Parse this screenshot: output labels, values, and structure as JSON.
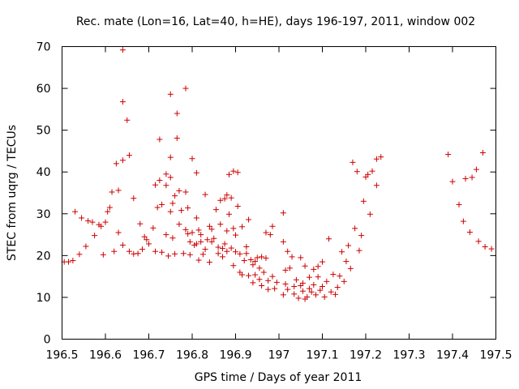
{
  "chart_data": {
    "type": "scatter",
    "title": "Rec. mate (Lon=16, Lat=40, h=HE), days 196-197, 2011, window 002",
    "xlabel": "GPS time / Days of year 2011",
    "ylabel": "STEC from uqrg / TECUs",
    "xlim": [
      196.5,
      197.5
    ],
    "ylim": [
      0,
      70
    ],
    "xticks": [
      196.5,
      196.6,
      196.7,
      196.8,
      196.9,
      197.0,
      197.1,
      197.2,
      197.3,
      197.4,
      197.5
    ],
    "xtick_labels": [
      "196.5",
      "196.6",
      "196.7",
      "196.8",
      "196.9",
      "197",
      "197.1",
      "197.2",
      "197.3",
      "197.4",
      "197.5"
    ],
    "yticks": [
      0,
      10,
      20,
      30,
      40,
      50,
      60,
      70
    ],
    "ytick_labels": [
      "0",
      "10",
      "20",
      "30",
      "40",
      "50",
      "60",
      "70"
    ],
    "marker": "plus",
    "colors": {
      "marker": "#cc0000",
      "frame": "#000000"
    },
    "grid": false,
    "series": [
      {
        "points": [
          [
            196.505,
            18.5
          ],
          [
            196.515,
            18.5
          ],
          [
            196.525,
            18.8
          ],
          [
            196.53,
            30.5
          ],
          [
            196.54,
            20.3
          ],
          [
            196.545,
            29.0
          ],
          [
            196.555,
            22.2
          ],
          [
            196.56,
            28.3
          ],
          [
            196.57,
            28.0
          ],
          [
            196.575,
            24.8
          ],
          [
            196.585,
            27.4
          ],
          [
            196.59,
            27.0
          ],
          [
            196.595,
            20.2
          ],
          [
            196.6,
            28.0
          ],
          [
            196.605,
            30.5
          ],
          [
            196.61,
            31.5
          ],
          [
            196.615,
            35.2
          ],
          [
            196.62,
            21.0
          ],
          [
            196.625,
            42.0
          ],
          [
            196.63,
            35.6
          ],
          [
            196.63,
            25.5
          ],
          [
            196.64,
            42.8
          ],
          [
            196.64,
            22.5
          ],
          [
            196.64,
            69.2
          ],
          [
            196.64,
            56.8
          ],
          [
            196.65,
            52.4
          ],
          [
            196.655,
            44.0
          ],
          [
            196.655,
            21.0
          ],
          [
            196.665,
            33.7
          ],
          [
            196.665,
            20.4
          ],
          [
            196.675,
            20.5
          ],
          [
            196.68,
            27.6
          ],
          [
            196.685,
            21.5
          ],
          [
            196.69,
            24.5
          ],
          [
            196.695,
            23.8
          ],
          [
            196.7,
            22.8
          ],
          [
            196.71,
            26.6
          ],
          [
            196.715,
            36.9
          ],
          [
            196.715,
            21.0
          ],
          [
            196.72,
            31.5
          ],
          [
            196.725,
            38.0
          ],
          [
            196.725,
            47.8
          ],
          [
            196.73,
            32.2
          ],
          [
            196.73,
            20.8
          ],
          [
            196.74,
            25.0
          ],
          [
            196.74,
            39.5
          ],
          [
            196.74,
            36.8
          ],
          [
            196.745,
            19.9
          ],
          [
            196.75,
            43.5
          ],
          [
            196.75,
            58.6
          ],
          [
            196.75,
            38.7
          ],
          [
            196.75,
            30.5
          ],
          [
            196.755,
            24.2
          ],
          [
            196.755,
            32.5
          ],
          [
            196.76,
            34.3
          ],
          [
            196.76,
            20.4
          ],
          [
            196.765,
            54.0
          ],
          [
            196.765,
            48.1
          ],
          [
            196.77,
            35.5
          ],
          [
            196.77,
            27.5
          ],
          [
            196.775,
            30.8
          ],
          [
            196.78,
            20.5
          ],
          [
            196.785,
            26.2
          ],
          [
            196.785,
            60.0
          ],
          [
            196.785,
            35.2
          ],
          [
            196.79,
            25.2
          ],
          [
            196.79,
            31.4
          ],
          [
            196.795,
            23.3
          ],
          [
            196.795,
            20.2
          ],
          [
            196.8,
            43.2
          ],
          [
            196.8,
            25.5
          ],
          [
            196.805,
            22.5
          ],
          [
            196.81,
            29.0
          ],
          [
            196.81,
            39.8
          ],
          [
            196.81,
            22.8
          ],
          [
            196.815,
            26.1
          ],
          [
            196.815,
            18.9
          ],
          [
            196.82,
            23.3
          ],
          [
            196.82,
            25.0
          ],
          [
            196.825,
            20.3
          ],
          [
            196.83,
            34.6
          ],
          [
            196.83,
            21.5
          ],
          [
            196.835,
            23.8
          ],
          [
            196.84,
            27.0
          ],
          [
            196.84,
            18.4
          ],
          [
            196.845,
            26.3
          ],
          [
            196.845,
            23.3
          ],
          [
            196.85,
            24.1
          ],
          [
            196.855,
            31.0
          ],
          [
            196.86,
            22.0
          ],
          [
            196.86,
            20.5
          ],
          [
            196.865,
            27.5
          ],
          [
            196.865,
            33.2
          ],
          [
            196.87,
            21.7
          ],
          [
            196.87,
            19.7
          ],
          [
            196.875,
            33.6
          ],
          [
            196.875,
            22.8
          ],
          [
            196.88,
            25.9
          ],
          [
            196.88,
            21.0
          ],
          [
            196.88,
            34.5
          ],
          [
            196.885,
            39.4
          ],
          [
            196.885,
            29.9
          ],
          [
            196.89,
            33.8
          ],
          [
            196.89,
            21.8
          ],
          [
            196.895,
            40.2
          ],
          [
            196.895,
            17.6
          ],
          [
            196.895,
            26.5
          ],
          [
            196.9,
            24.9
          ],
          [
            196.9,
            20.9
          ],
          [
            196.905,
            31.8
          ],
          [
            196.905,
            39.9
          ],
          [
            196.91,
            16.0
          ],
          [
            196.91,
            20.4
          ],
          [
            196.915,
            15.4
          ],
          [
            196.915,
            26.9
          ],
          [
            196.92,
            18.8
          ],
          [
            196.925,
            20.5
          ],
          [
            196.925,
            22.1
          ],
          [
            196.93,
            28.6
          ],
          [
            196.93,
            15.2
          ],
          [
            196.935,
            19.0
          ],
          [
            196.94,
            13.5
          ],
          [
            196.94,
            17.8
          ],
          [
            196.945,
            18.6
          ],
          [
            196.945,
            15.4
          ],
          [
            196.95,
            19.5
          ],
          [
            196.955,
            14.3
          ],
          [
            196.955,
            17.0
          ],
          [
            196.96,
            19.7
          ],
          [
            196.96,
            12.8
          ],
          [
            196.965,
            16.0
          ],
          [
            196.97,
            19.4
          ],
          [
            196.97,
            25.5
          ],
          [
            196.975,
            14.0
          ],
          [
            196.975,
            11.9
          ],
          [
            196.98,
            25.0
          ],
          [
            196.985,
            27.0
          ],
          [
            196.985,
            15.0
          ],
          [
            196.99,
            12.1
          ],
          [
            196.995,
            13.6
          ],
          [
            197.01,
            30.2
          ],
          [
            197.01,
            10.6
          ],
          [
            197.01,
            23.3
          ],
          [
            197.015,
            16.5
          ],
          [
            197.015,
            13.2
          ],
          [
            197.02,
            21.0
          ],
          [
            197.02,
            11.9
          ],
          [
            197.025,
            17.0
          ],
          [
            197.03,
            19.7
          ],
          [
            197.035,
            12.6
          ],
          [
            197.035,
            10.8
          ],
          [
            197.04,
            14.2
          ],
          [
            197.045,
            9.8
          ],
          [
            197.05,
            19.5
          ],
          [
            197.05,
            12.8
          ],
          [
            197.055,
            13.4
          ],
          [
            197.055,
            11.5
          ],
          [
            197.06,
            9.6
          ],
          [
            197.06,
            17.5
          ],
          [
            197.065,
            10.1
          ],
          [
            197.07,
            12.1
          ],
          [
            197.07,
            14.8
          ],
          [
            197.075,
            11.3
          ],
          [
            197.08,
            16.7
          ],
          [
            197.08,
            13.0
          ],
          [
            197.085,
            10.6
          ],
          [
            197.09,
            17.4
          ],
          [
            197.09,
            14.9
          ],
          [
            197.095,
            11.7
          ],
          [
            197.1,
            18.5
          ],
          [
            197.1,
            12.6
          ],
          [
            197.105,
            10.1
          ],
          [
            197.11,
            13.8
          ],
          [
            197.115,
            24.0
          ],
          [
            197.12,
            11.3
          ],
          [
            197.125,
            15.5
          ],
          [
            197.13,
            10.7
          ],
          [
            197.135,
            12.4
          ],
          [
            197.14,
            15.1
          ],
          [
            197.145,
            20.9
          ],
          [
            197.15,
            13.8
          ],
          [
            197.155,
            18.6
          ],
          [
            197.16,
            22.4
          ],
          [
            197.165,
            16.9
          ],
          [
            197.17,
            42.3
          ],
          [
            197.175,
            26.5
          ],
          [
            197.18,
            40.1
          ],
          [
            197.185,
            21.2
          ],
          [
            197.19,
            24.8
          ],
          [
            197.195,
            33.0
          ],
          [
            197.2,
            38.8
          ],
          [
            197.205,
            39.4
          ],
          [
            197.21,
            29.9
          ],
          [
            197.215,
            40.2
          ],
          [
            197.225,
            43.1
          ],
          [
            197.225,
            36.8
          ],
          [
            197.235,
            43.6
          ],
          [
            197.39,
            44.2
          ],
          [
            197.4,
            37.7
          ],
          [
            197.415,
            32.2
          ],
          [
            197.425,
            28.2
          ],
          [
            197.43,
            38.4
          ],
          [
            197.44,
            25.6
          ],
          [
            197.445,
            38.7
          ],
          [
            197.455,
            40.6
          ],
          [
            197.46,
            23.4
          ],
          [
            197.47,
            44.6
          ],
          [
            197.475,
            22.1
          ],
          [
            197.49,
            21.6
          ]
        ]
      }
    ]
  }
}
